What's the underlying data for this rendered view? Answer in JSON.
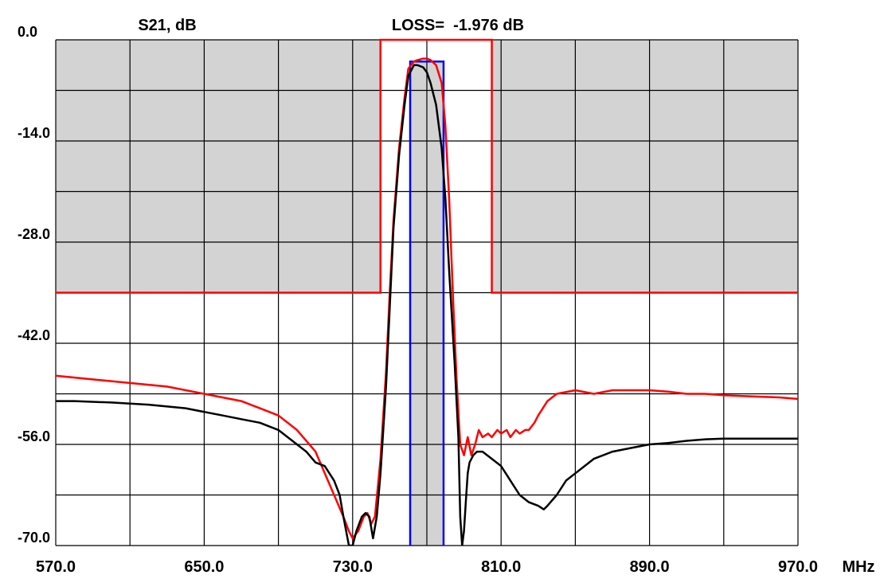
{
  "chart_data": {
    "type": "line",
    "title": "S21, dB",
    "annotation": "LOSS=  -1.976 dB",
    "x_unit": "MHz",
    "xlim": [
      570,
      970
    ],
    "ylim": [
      -70,
      0
    ],
    "x_ticks": [
      "570.0",
      "650.0",
      "730.0",
      "810.0",
      "890.0",
      "970.0"
    ],
    "y_ticks": [
      "0.0",
      "-14.0",
      "-28.0",
      "-42.0",
      "-56.0",
      "-70.0"
    ],
    "grid": true,
    "mask": {
      "color": "#ff0000",
      "fill": "#d3d3d3",
      "stopband_level": -35,
      "passband_x": [
        745,
        805
      ],
      "passband_y": [
        0,
        -35
      ],
      "center_passband_x": [
        761,
        779
      ],
      "center_passband_y": [
        -3,
        -70
      ],
      "center_color": "#0000ff"
    },
    "series": [
      {
        "color": "#ff0000",
        "x": [
          570,
          590,
          610,
          630,
          650,
          670,
          680,
          690,
          700,
          710,
          715,
          720,
          725,
          728,
          730,
          733,
          736,
          738,
          740,
          742,
          745,
          748,
          750,
          752,
          755,
          758,
          760,
          763,
          765,
          768,
          770,
          772,
          775,
          778,
          780,
          782,
          784,
          786,
          788,
          790,
          792,
          794,
          796,
          798,
          800,
          803,
          805,
          808,
          810,
          813,
          815,
          818,
          820,
          823,
          825,
          828,
          830,
          835,
          840,
          850,
          860,
          870,
          880,
          890,
          900,
          910,
          920,
          930,
          940,
          950,
          960,
          970
        ],
        "y": [
          -46.5,
          -47,
          -47.5,
          -48,
          -49,
          -50,
          -51,
          -52,
          -54,
          -57,
          -60,
          -63,
          -66,
          -68,
          -69,
          -68,
          -66,
          -65.5,
          -67,
          -66,
          -58,
          -46,
          -35,
          -25,
          -15,
          -8,
          -4,
          -3,
          -2.8,
          -2.6,
          -2.6,
          -2.8,
          -3.5,
          -6,
          -12,
          -22,
          -35,
          -47,
          -56,
          -57.5,
          -55,
          -57.5,
          -56,
          -54,
          -55,
          -54.5,
          -55,
          -54,
          -54.5,
          -54,
          -55,
          -54,
          -54.5,
          -54,
          -54,
          -53,
          -52,
          -50,
          -49,
          -48.5,
          -49,
          -48.5,
          -48.5,
          -48.5,
          -48.7,
          -49,
          -49,
          -49.2,
          -49.3,
          -49.4,
          -49.5,
          -49.7
        ]
      },
      {
        "color": "#000000",
        "x": [
          570,
          580,
          600,
          620,
          640,
          650,
          660,
          670,
          680,
          690,
          700,
          705,
          710,
          715,
          720,
          723,
          725,
          728,
          730,
          732,
          735,
          737,
          739,
          741,
          743,
          745,
          748,
          750,
          752,
          755,
          758,
          760,
          763,
          765,
          768,
          770,
          772,
          775,
          778,
          780,
          782,
          785,
          787,
          788,
          789,
          790,
          791,
          792,
          793,
          795,
          797,
          800,
          805,
          810,
          815,
          820,
          825,
          830,
          833,
          835,
          840,
          845,
          850,
          860,
          870,
          880,
          890,
          900,
          910,
          920,
          930,
          940,
          950,
          960,
          970
        ],
        "y": [
          -50,
          -50,
          -50.2,
          -50.5,
          -51,
          -51.5,
          -52,
          -52.5,
          -53,
          -54,
          -56,
          -57,
          -58.5,
          -59,
          -61,
          -63,
          -66,
          -70,
          -70,
          -68,
          -66,
          -65.5,
          -66,
          -69,
          -66,
          -60,
          -48,
          -37,
          -26,
          -16,
          -9,
          -5,
          -3.5,
          -3.5,
          -3.8,
          -4.5,
          -6,
          -9,
          -15,
          -22,
          -32,
          -45,
          -55,
          -66,
          -70,
          -68,
          -64,
          -60,
          -58.5,
          -57.5,
          -57,
          -57,
          -58,
          -59,
          -61,
          -63,
          -64,
          -64.5,
          -65,
          -64.5,
          -63,
          -61,
          -60,
          -58,
          -57,
          -56.5,
          -56,
          -55.8,
          -55.5,
          -55.3,
          -55.2,
          -55.2,
          -55.2,
          -55.2,
          -55.2
        ]
      }
    ]
  }
}
